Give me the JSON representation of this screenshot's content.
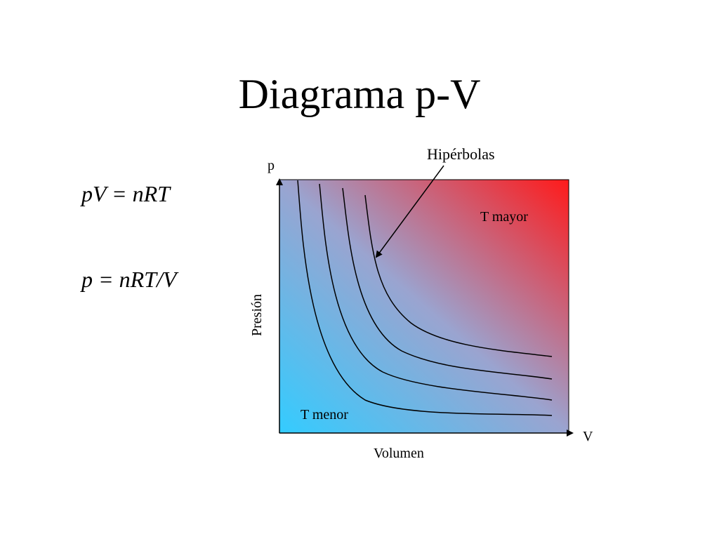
{
  "slide": {
    "title": "Diagrama p-V",
    "equation_1": "pV = nRT",
    "equation_2": "p = nRT/V"
  },
  "diagram": {
    "callout_label": "Hipérbolas",
    "y_axis_symbol": "p",
    "x_axis_symbol": "V",
    "y_axis_label": "Presión",
    "x_axis_label": "Volumen",
    "high_temp_label": "T mayor",
    "low_temp_label": "T menor",
    "gradient_low_color": "#33ccff",
    "gradient_mid_color": "#9aa4d0",
    "gradient_high_color": "#ff1a1a",
    "isotherm_count": 4
  }
}
